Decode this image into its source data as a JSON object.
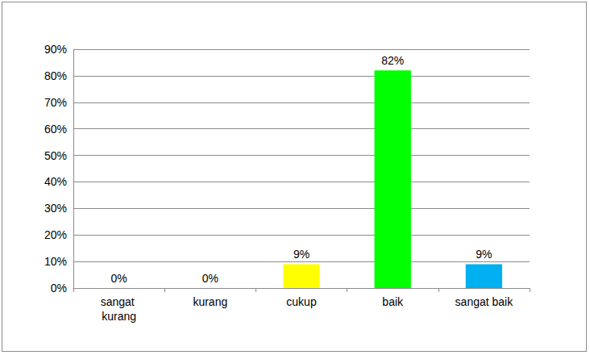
{
  "chart_data": {
    "type": "bar",
    "categories": [
      "sangat kurang",
      "kurang",
      "cukup",
      "baik",
      "sangat baik"
    ],
    "values": [
      0,
      0,
      9,
      82,
      9
    ],
    "value_labels": [
      "0%",
      "0%",
      "9%",
      "82%",
      "9%"
    ],
    "colors": [
      "#c00000",
      "#cc9900",
      "#ffff00",
      "#00ff00",
      "#00b0f0"
    ],
    "ylim": [
      0,
      90
    ],
    "yticks": [
      {
        "value": 0,
        "label": "0%"
      },
      {
        "value": 10,
        "label": "10%"
      },
      {
        "value": 20,
        "label": "20%"
      },
      {
        "value": 30,
        "label": "30%"
      },
      {
        "value": 40,
        "label": "40%"
      },
      {
        "value": 50,
        "label": "50%"
      },
      {
        "value": 60,
        "label": "60%"
      },
      {
        "value": 70,
        "label": "70%"
      },
      {
        "value": 80,
        "label": "80%"
      },
      {
        "value": 90,
        "label": "90%"
      }
    ],
    "grid": true,
    "data_labels": true
  }
}
